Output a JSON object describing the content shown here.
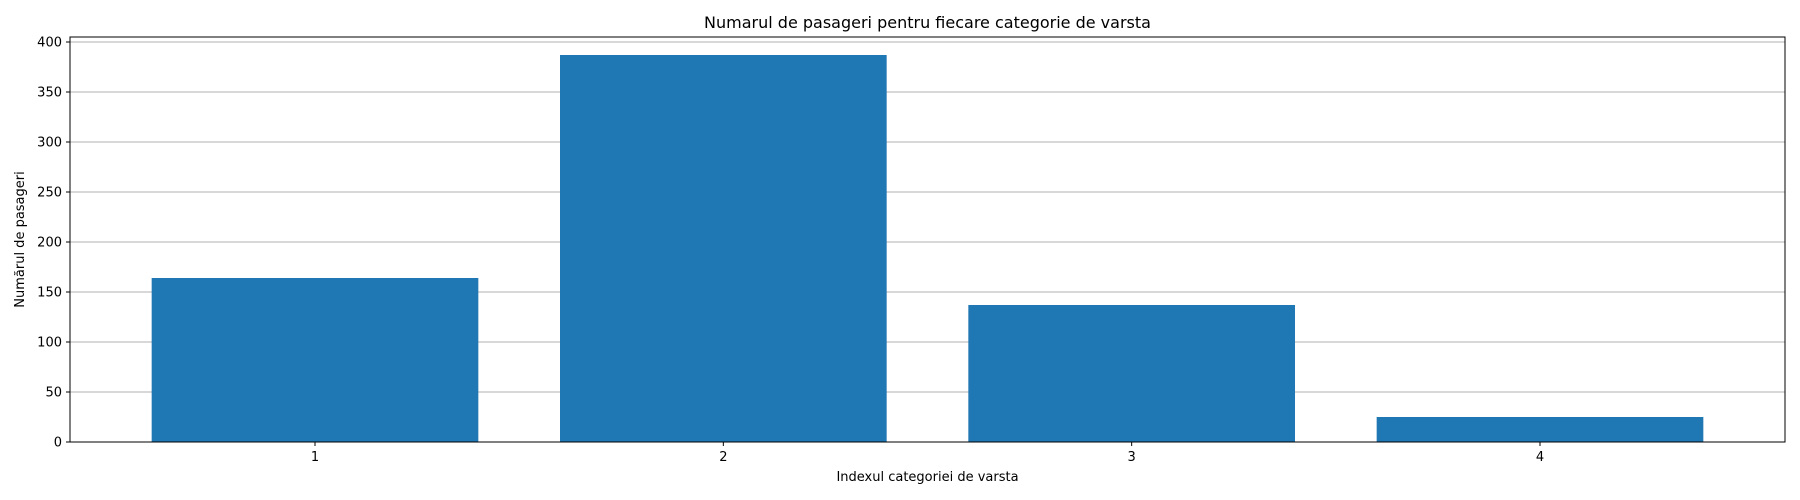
{
  "chart_data": {
    "type": "bar",
    "title": "Numarul de pasageri pentru fiecare categorie de varsta",
    "xlabel": "Indexul categoriei de varsta",
    "ylabel": "Numărul de pasageri",
    "categories": [
      "1",
      "2",
      "3",
      "4"
    ],
    "values": [
      164,
      387,
      137,
      25
    ],
    "ylim": [
      0,
      405
    ],
    "yticks": [
      0,
      50,
      100,
      150,
      200,
      250,
      300,
      350,
      400
    ],
    "grid": "y",
    "bar_color": "#1f77b4",
    "grid_color": "#b0b0b0"
  }
}
